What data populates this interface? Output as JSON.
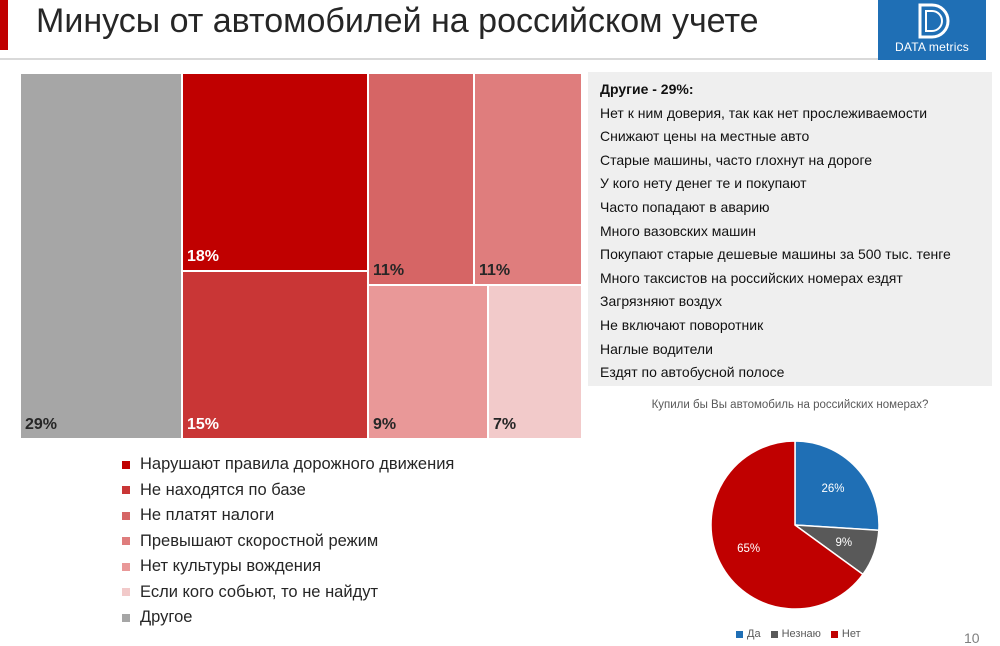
{
  "header": {
    "title": "Минусы от автомобилей на российском учете",
    "logo_text": "DATA metrics",
    "accent_color": "#c00000",
    "logo_color": "#1f6fb5"
  },
  "others_box": {
    "title": "Другие - 29%:",
    "items": [
      "Нет к ним доверия, так как нет прослеживаемости",
      "Снижают цены на местные авто",
      "Старые машины, часто глохнут на дороге",
      "У кого нету денег те и покупают",
      "Часто попадают в аварию",
      "Много вазовских машин",
      "Покупают старые дешевые машины за 500 тыс. тенге",
      "Много таксистов на российских номерах ездят",
      "Загрязняют воздух",
      "Не включают поворотник",
      "Наглые водители",
      "Ездят по автобусной полосе"
    ]
  },
  "chart_data": [
    {
      "type": "treemap",
      "title": "Минусы от автомобилей на российском учете",
      "categories": [
        {
          "name": "Другое",
          "value": 29,
          "label": "29%",
          "color": "#a6a6a6"
        },
        {
          "name": "Нарушают правила дорожного движения",
          "value": 18,
          "label": "18%",
          "color": "#c00000"
        },
        {
          "name": "Не находятся по базе",
          "value": 15,
          "label": "15%",
          "color": "#c93636"
        },
        {
          "name": "Не платят налоги",
          "value": 11,
          "label": "11%",
          "color": "#d66565"
        },
        {
          "name": "Превышают скоростной режим",
          "value": 11,
          "label": "11%",
          "color": "#df7d7d"
        },
        {
          "name": "Нет культуры вождения",
          "value": 9,
          "label": "9%",
          "color": "#e99898"
        },
        {
          "name": "Если кого собьют, то не найдут",
          "value": 7,
          "label": "7%",
          "color": "#f2caca"
        }
      ],
      "legend": [
        {
          "label": "Нарушают правила дорожного движения",
          "color": "#c00000"
        },
        {
          "label": "Не находятся по базе",
          "color": "#c93636"
        },
        {
          "label": "Не платят налоги",
          "color": "#d66565"
        },
        {
          "label": "Превышают скоростной режим",
          "color": "#df7d7d"
        },
        {
          "label": "Нет культуры вождения",
          "color": "#e99898"
        },
        {
          "label": "Если кого собьют, то не найдут",
          "color": "#f2caca"
        },
        {
          "label": "Другое",
          "color": "#a6a6a6"
        }
      ]
    },
    {
      "type": "pie",
      "title": "Купили бы Вы автомобиль на российских номерах?",
      "slices": [
        {
          "name": "Да",
          "value": 26,
          "label": "26%",
          "color": "#1f6fb5"
        },
        {
          "name": "Незнаю",
          "value": 9,
          "label": "9%",
          "color": "#595959"
        },
        {
          "name": "Нет",
          "value": 65,
          "label": "65%",
          "color": "#c00000"
        }
      ],
      "legend_position": "bottom"
    }
  ],
  "page_number": "10"
}
